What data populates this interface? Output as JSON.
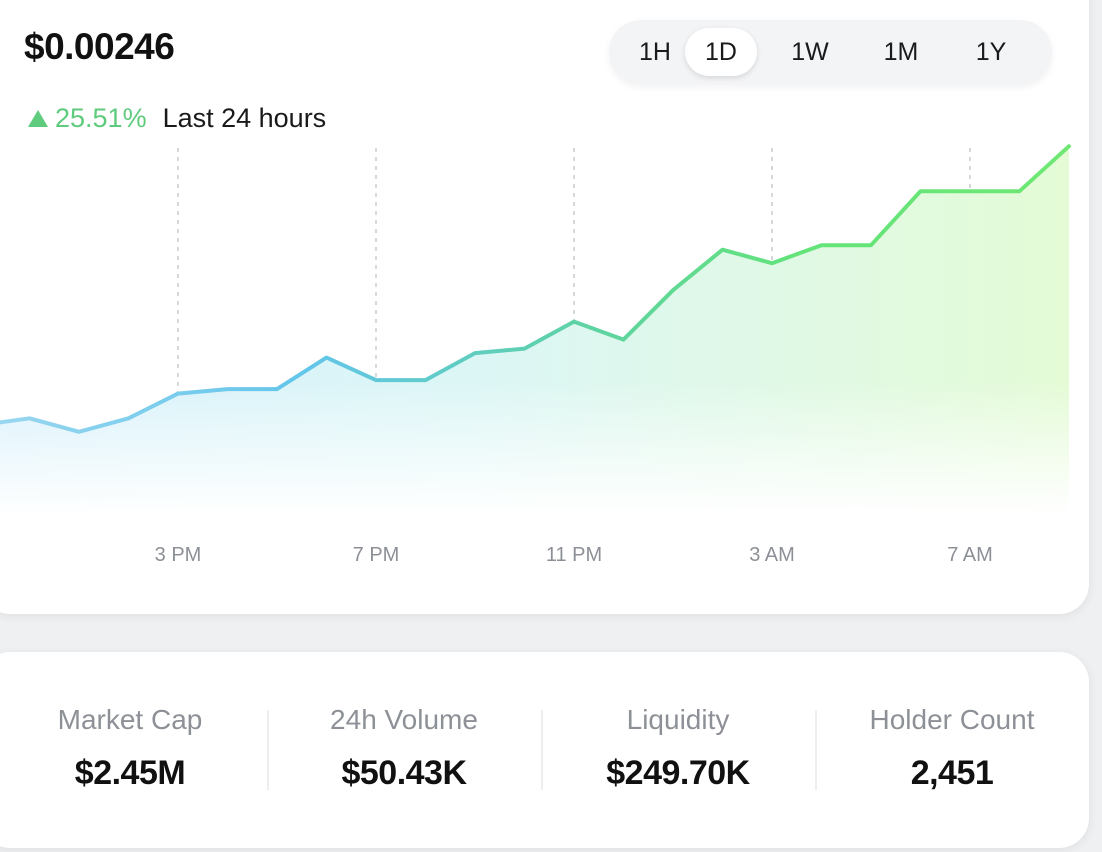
{
  "price": "$0.00246",
  "change": {
    "percent": "25.51%",
    "label": "Last 24 hours",
    "direction": "up",
    "up_color": "#5ecb7d"
  },
  "time_ranges": [
    {
      "label": "1H",
      "active": false
    },
    {
      "label": "1D",
      "active": true
    },
    {
      "label": "1W",
      "active": false
    },
    {
      "label": "1M",
      "active": false
    },
    {
      "label": "1Y",
      "active": false
    }
  ],
  "chart_data": {
    "type": "area",
    "x_tick_labels": [
      "3 PM",
      "7 PM",
      "11 PM",
      "3 AM",
      "7 AM"
    ],
    "values": [
      2.1,
      2.13,
      2.07,
      2.13,
      2.24,
      2.26,
      2.26,
      2.4,
      2.3,
      2.3,
      2.42,
      2.44,
      2.56,
      2.48,
      2.7,
      2.88,
      2.82,
      2.9,
      2.9,
      3.14,
      3.14,
      3.14,
      3.34
    ],
    "ylim": [
      1.5,
      3.35
    ],
    "gradient_start_color": "#62c5ea",
    "gradient_end_color": "#63e37a",
    "grid": "vertical-dashed"
  },
  "stats": [
    {
      "label": "Market Cap",
      "value": "$2.45M"
    },
    {
      "label": "24h Volume",
      "value": "$50.43K"
    },
    {
      "label": "Liquidity",
      "value": "$249.70K"
    },
    {
      "label": "Holder Count",
      "value": "2,451"
    }
  ]
}
